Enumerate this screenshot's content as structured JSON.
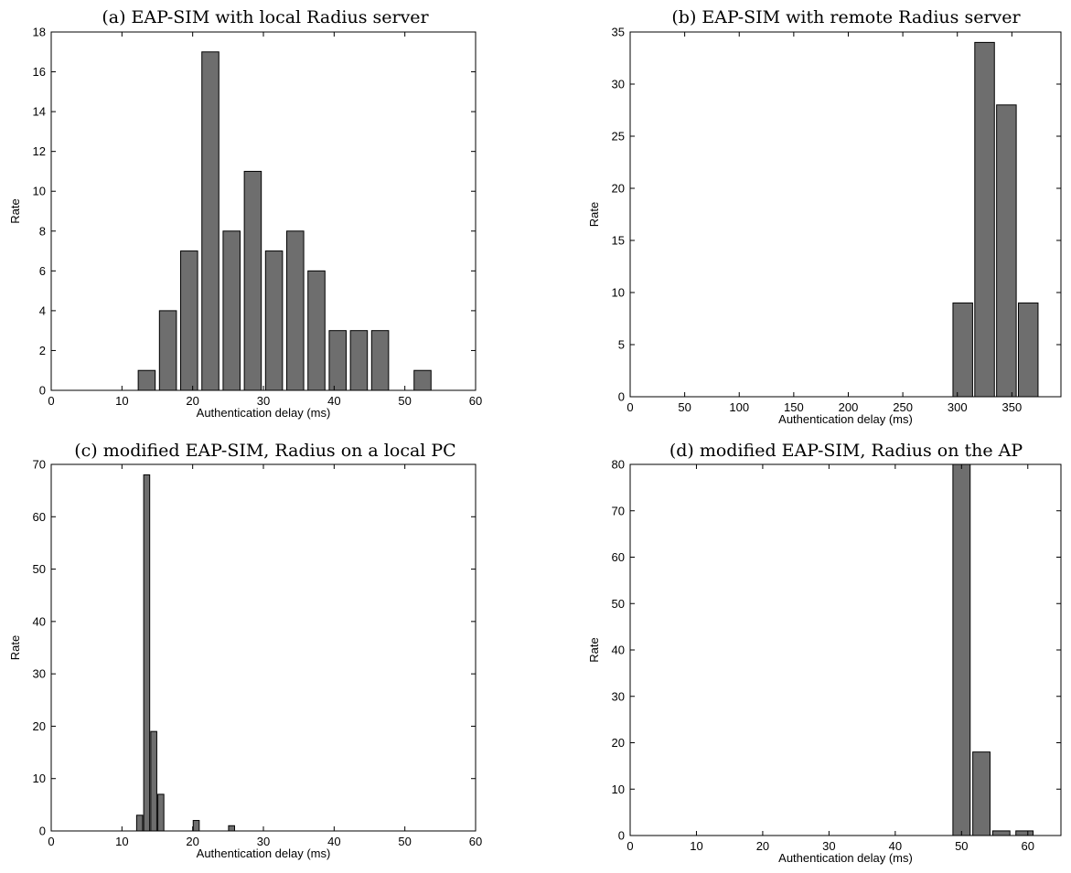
{
  "chart_data": [
    {
      "type": "bar",
      "title": "(a) EAP-SIM with local Radius server",
      "xlabel": "Authentication delay (ms)",
      "ylabel": "Rate",
      "xlim": [
        0,
        60
      ],
      "ylim": [
        0,
        18
      ],
      "xticks": [
        0,
        10,
        20,
        30,
        40,
        50,
        60
      ],
      "yticks": [
        0,
        2,
        4,
        6,
        8,
        10,
        12,
        14,
        16,
        18
      ],
      "bar_width": 2.4,
      "x": [
        13.5,
        16.5,
        19.5,
        22.5,
        25.5,
        28.5,
        31.5,
        34.5,
        37.5,
        40.5,
        43.5,
        46.5,
        52.5
      ],
      "values": [
        1,
        4,
        7,
        17,
        8,
        11,
        7,
        8,
        6,
        3,
        3,
        3,
        1
      ],
      "bar_color": "#6e6e6e",
      "grid": false
    },
    {
      "type": "bar",
      "title": "(b) EAP-SIM with remote Radius server",
      "xlabel": "Authentication delay (ms)",
      "ylabel": "Rate",
      "xlim": [
        0,
        395
      ],
      "ylim": [
        0,
        35
      ],
      "xticks": [
        0,
        50,
        100,
        150,
        200,
        250,
        300,
        350
      ],
      "yticks": [
        0,
        5,
        10,
        15,
        20,
        25,
        30,
        35
      ],
      "bar_width": 18,
      "x": [
        305,
        325,
        345,
        365
      ],
      "values": [
        9,
        34,
        28,
        9
      ],
      "bar_color": "#6e6e6e",
      "grid": false
    },
    {
      "type": "bar",
      "title": "(c) modified EAP-SIM, Radius on a local PC",
      "xlabel": "Authentication delay (ms)",
      "ylabel": "Rate",
      "xlim": [
        0,
        60
      ],
      "ylim": [
        0,
        70
      ],
      "xticks": [
        0,
        10,
        20,
        30,
        40,
        50,
        60
      ],
      "yticks": [
        0,
        10,
        20,
        30,
        40,
        50,
        60,
        70
      ],
      "bar_width": 0.85,
      "x": [
        12.5,
        13.5,
        14.5,
        15.5,
        20.5,
        25.5
      ],
      "values": [
        3,
        68,
        19,
        7,
        2,
        1
      ],
      "bar_color": "#6e6e6e",
      "grid": false
    },
    {
      "type": "bar",
      "title": "(d) modified EAP-SIM, Radius on the AP",
      "xlabel": "Authentication delay (ms)",
      "ylabel": "Rate",
      "xlim": [
        0,
        65
      ],
      "ylim": [
        0,
        80
      ],
      "xticks": [
        0,
        10,
        20,
        30,
        40,
        50,
        60
      ],
      "yticks": [
        0,
        10,
        20,
        30,
        40,
        50,
        60,
        70,
        80
      ],
      "bar_width": 2.6,
      "x": [
        50,
        53,
        56,
        59.5
      ],
      "values": [
        80,
        18,
        1,
        1
      ],
      "bar_color": "#6e6e6e",
      "grid": false
    }
  ]
}
